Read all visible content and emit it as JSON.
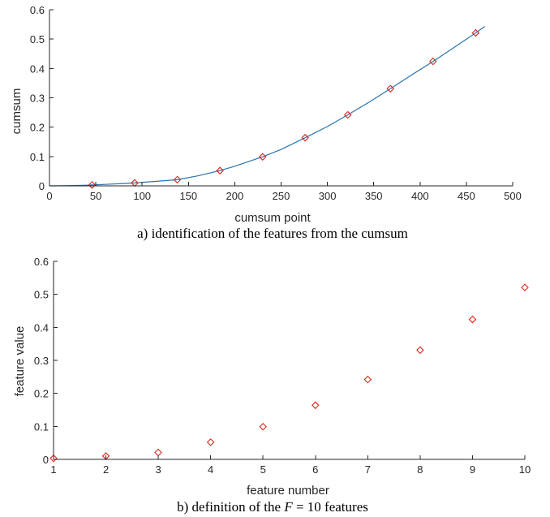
{
  "chart_data": [
    {
      "type": "line",
      "xlabel": "cumsum point",
      "ylabel": "cumsum",
      "caption": "a) identification of the features from the cumsum",
      "xlim": [
        0,
        500
      ],
      "ylim": [
        0,
        0.6
      ],
      "xticks": [
        0,
        50,
        100,
        150,
        200,
        250,
        300,
        350,
        400,
        450,
        500
      ],
      "yticks": [
        0,
        0.1,
        0.2,
        0.3,
        0.4,
        0.5,
        0.6
      ],
      "grid": false,
      "curve_color": "#2a73b0",
      "marker_color": "#d9261c",
      "marker": "diamond",
      "series": [
        {
          "style": "line",
          "x": [
            0,
            10,
            20,
            30,
            40,
            46,
            60,
            80,
            92,
            110,
            138,
            160,
            184,
            200,
            230,
            250,
            276,
            300,
            322,
            345,
            368,
            390,
            414,
            437,
            460,
            470
          ],
          "y": [
            0,
            0.0003,
            0.0008,
            0.0015,
            0.0022,
            0.003,
            0.005,
            0.008,
            0.01,
            0.014,
            0.021,
            0.034,
            0.052,
            0.067,
            0.099,
            0.124,
            0.164,
            0.202,
            0.242,
            0.285,
            0.331,
            0.376,
            0.424,
            0.472,
            0.521,
            0.543
          ]
        },
        {
          "style": "markers",
          "x": [
            46,
            92,
            138,
            184,
            230,
            276,
            322,
            368,
            414,
            460
          ],
          "y": [
            0.003,
            0.01,
            0.021,
            0.052,
            0.099,
            0.164,
            0.242,
            0.331,
            0.424,
            0.521
          ]
        }
      ]
    },
    {
      "type": "scatter",
      "xlabel": "feature number",
      "ylabel": "feature value",
      "caption_prefix": "b) definition of the ",
      "caption_var": "F",
      "caption_suffix": " = 10 features",
      "xlim": [
        1,
        10
      ],
      "ylim": [
        0,
        0.6
      ],
      "xticks": [
        1,
        2,
        3,
        4,
        5,
        6,
        7,
        8,
        9,
        10
      ],
      "yticks": [
        0,
        0.1,
        0.2,
        0.3,
        0.4,
        0.5,
        0.6
      ],
      "grid": false,
      "marker_color": "#d9261c",
      "marker": "diamond",
      "series": [
        {
          "x": [
            1,
            2,
            3,
            4,
            5,
            6,
            7,
            8,
            9,
            10
          ],
          "y": [
            0.003,
            0.01,
            0.021,
            0.052,
            0.099,
            0.164,
            0.242,
            0.331,
            0.424,
            0.521
          ]
        }
      ]
    }
  ]
}
